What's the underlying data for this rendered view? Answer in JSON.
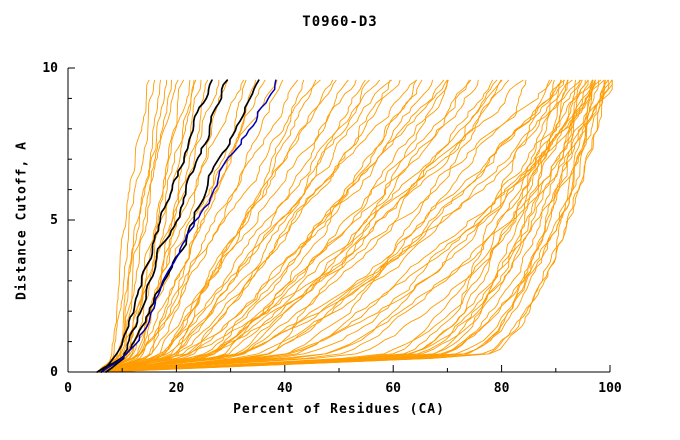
{
  "chart_data": {
    "type": "line",
    "title": "T0960-D3",
    "xlabel": "Percent of Residues (CA)",
    "ylabel": "Distance Cutoff, A",
    "xlim": [
      0,
      100
    ],
    "ylim": [
      0,
      10
    ],
    "x_ticks": [
      0,
      20,
      40,
      60,
      80,
      100
    ],
    "y_ticks": [
      0,
      5,
      10
    ],
    "x_minor_step": 10,
    "y_minor_step": 1,
    "grid": false,
    "legend": "none",
    "curve_start_x": 5,
    "curve_top_y": 9.63,
    "seed": 42,
    "curves_format": "[x_percent_at_y_0.5, x_percent_at_top, shape_exponent]",
    "series_groups": [
      {
        "name": "server-models-orange",
        "color": "#ff9c00",
        "width": 0.9,
        "curves": [
          [
            8,
            15,
            1.2
          ],
          [
            8,
            16,
            1.1
          ],
          [
            9,
            17,
            1.0
          ],
          [
            9,
            18,
            1.15
          ],
          [
            10,
            19,
            1.05
          ],
          [
            10,
            20,
            1.2
          ],
          [
            11,
            21,
            0.95
          ],
          [
            11,
            22,
            1.1
          ],
          [
            12,
            23,
            1.0
          ],
          [
            12,
            24,
            1.25
          ],
          [
            13,
            25,
            1.05
          ],
          [
            13,
            26,
            0.9
          ],
          [
            10,
            28,
            1.0
          ],
          [
            11,
            30,
            0.9
          ],
          [
            12,
            32,
            1.1
          ],
          [
            13,
            34,
            0.85
          ],
          [
            14,
            36,
            1.0
          ],
          [
            12,
            38,
            1.2
          ],
          [
            15,
            40,
            0.9
          ],
          [
            14,
            42,
            1.05
          ],
          [
            16,
            44,
            0.8
          ],
          [
            15,
            46,
            1.1
          ],
          [
            17,
            48,
            0.95
          ],
          [
            16,
            50,
            1.0
          ],
          [
            18,
            52,
            0.85
          ],
          [
            17,
            54,
            1.1
          ],
          [
            18,
            56,
            0.9
          ],
          [
            20,
            58,
            1.0
          ],
          [
            19,
            60,
            0.8
          ],
          [
            22,
            62,
            0.95
          ],
          [
            21,
            64,
            1.05
          ],
          [
            24,
            66,
            0.85
          ],
          [
            23,
            68,
            0.9
          ],
          [
            26,
            70,
            1.0
          ],
          [
            25,
            72,
            0.8
          ],
          [
            28,
            74,
            0.9
          ],
          [
            27,
            76,
            0.95
          ],
          [
            30,
            78,
            0.85
          ],
          [
            29,
            80,
            0.9
          ],
          [
            32,
            82,
            0.8
          ],
          [
            20,
            85,
            0.75
          ],
          [
            25,
            88,
            0.8
          ],
          [
            30,
            90,
            0.7
          ],
          [
            35,
            92,
            0.8
          ],
          [
            28,
            94,
            0.65
          ],
          [
            33,
            96,
            0.75
          ],
          [
            38,
            98,
            0.7
          ],
          [
            40,
            100,
            0.75
          ],
          [
            36,
            99,
            0.6
          ],
          [
            42,
            97,
            0.7
          ],
          [
            45,
            95,
            0.65
          ],
          [
            44,
            100,
            0.6
          ],
          [
            48,
            98,
            0.65
          ],
          [
            50,
            100,
            0.6
          ],
          [
            55,
            95,
            0.55
          ],
          [
            58,
            97,
            0.5
          ],
          [
            60,
            99,
            0.55
          ],
          [
            62,
            96,
            0.5
          ],
          [
            64,
            98,
            0.45
          ],
          [
            66,
            100,
            0.5
          ],
          [
            68,
            97,
            0.45
          ],
          [
            70,
            99,
            0.5
          ],
          [
            65,
            94,
            0.55
          ],
          [
            60,
            92,
            0.5
          ],
          [
            57,
            90,
            0.55
          ],
          [
            63,
            93,
            0.45
          ],
          [
            67,
            95,
            0.5
          ],
          [
            72,
            100,
            0.45
          ],
          [
            69,
            98,
            0.4
          ],
          [
            74,
            99,
            0.45
          ],
          [
            71,
            96,
            0.5
          ],
          [
            59,
            88,
            0.5
          ],
          [
            61,
            91,
            0.45
          ],
          [
            73,
            97,
            0.4
          ],
          [
            15,
            35,
            1.0
          ],
          [
            18,
            45,
            0.9
          ],
          [
            22,
            55,
            0.85
          ],
          [
            26,
            65,
            0.8
          ],
          [
            30,
            75,
            0.75
          ],
          [
            34,
            85,
            0.7
          ],
          [
            16,
            60,
            0.85
          ],
          [
            20,
            70,
            0.8
          ],
          [
            24,
            80,
            0.7
          ],
          [
            28,
            90,
            0.65
          ],
          [
            35,
            70,
            0.8
          ],
          [
            40,
            80,
            0.7
          ]
        ]
      },
      {
        "name": "reference-models-black",
        "color": "#000000",
        "width": 1.7,
        "curves": [
          [
            9,
            27,
            1.05
          ],
          [
            10,
            30,
            1.0
          ],
          [
            11,
            35,
            1.0
          ]
        ]
      },
      {
        "name": "highlight-model-blue",
        "color": "#0000bb",
        "width": 1.5,
        "curves": [
          [
            11,
            38,
            1.0
          ]
        ]
      }
    ],
    "axis_color": "#000000"
  }
}
